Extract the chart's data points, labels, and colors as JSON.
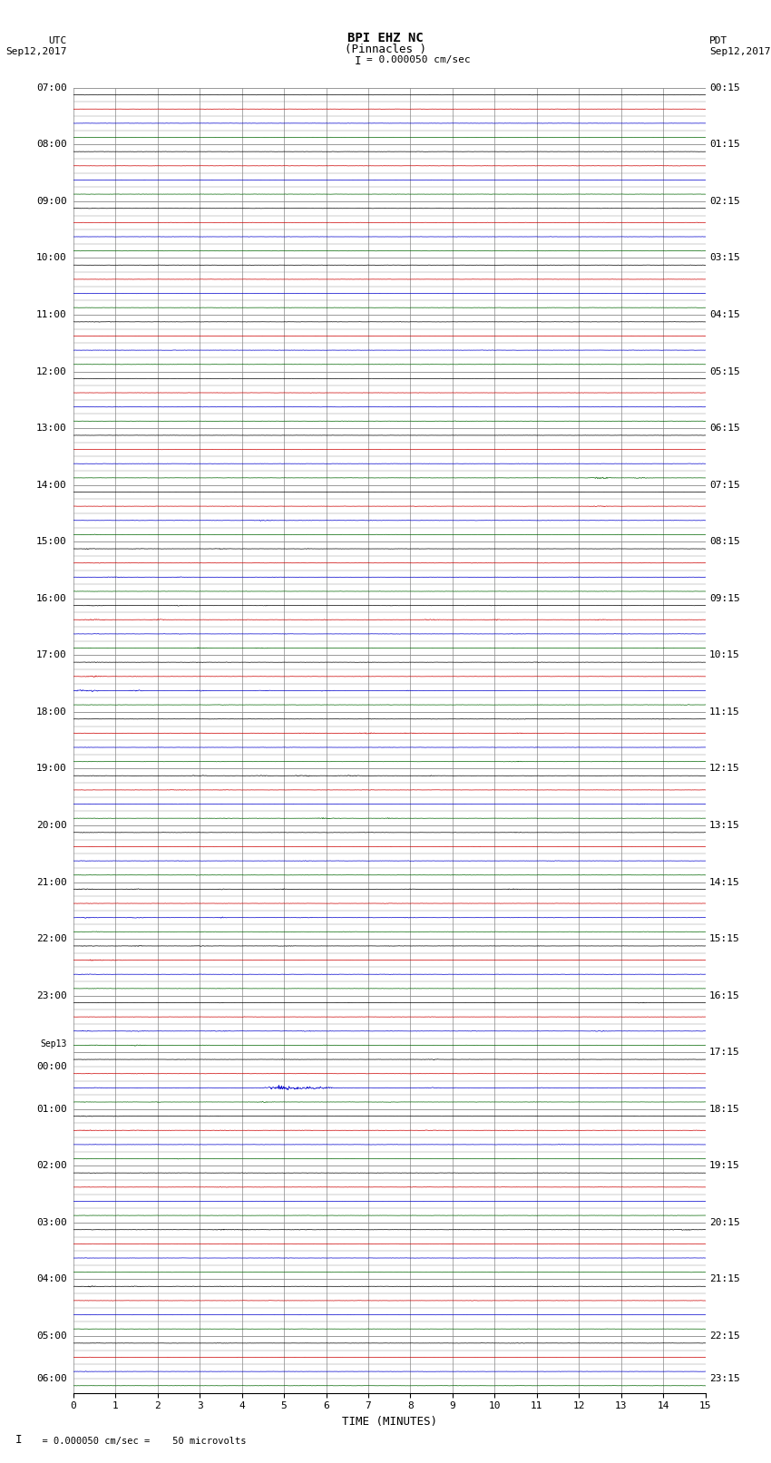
{
  "title_line1": "BPI EHZ NC",
  "title_line2": "(Pinnacles )",
  "scale_bar": "I = 0.000050 cm/sec",
  "left_label_top": "UTC",
  "left_label_date": "Sep12,2017",
  "right_label_top": "PDT",
  "right_label_date": "Sep12,2017",
  "xlabel": "TIME (MINUTES)",
  "footer": "= 0.000050 cm/sec =    50 microvolts",
  "xlim": [
    0,
    15
  ],
  "bg_color": "#ffffff",
  "grid_color": "#888888",
  "grid_minor_color": "#bbbbbb",
  "trace_colors": [
    "#000000",
    "#cc0000",
    "#0000cc",
    "#006600"
  ],
  "n_rows": 92,
  "noise_seed": 12345,
  "fig_width": 8.5,
  "fig_height": 16.13,
  "utc_labels": {
    "0": "07:00",
    "4": "08:00",
    "8": "09:00",
    "12": "10:00",
    "16": "11:00",
    "20": "12:00",
    "24": "13:00",
    "28": "14:00",
    "32": "15:00",
    "36": "16:00",
    "40": "17:00",
    "44": "18:00",
    "48": "19:00",
    "52": "20:00",
    "56": "21:00",
    "60": "22:00",
    "64": "23:00",
    "68": "Sep13",
    "69": "00:00",
    "72": "01:00",
    "76": "02:00",
    "80": "03:00",
    "84": "04:00",
    "88": "05:00",
    "91": "06:00"
  },
  "pdt_labels": {
    "0": "00:15",
    "4": "01:15",
    "8": "02:15",
    "12": "03:15",
    "16": "04:15",
    "20": "05:15",
    "24": "06:15",
    "28": "07:15",
    "32": "08:15",
    "36": "09:15",
    "40": "10:15",
    "44": "11:15",
    "48": "12:15",
    "52": "13:15",
    "56": "14:15",
    "60": "15:15",
    "64": "16:15",
    "68": "17:15",
    "72": "18:15",
    "76": "19:15",
    "80": "20:15",
    "84": "21:15",
    "88": "22:15",
    "91": "23:15"
  },
  "base_noise": 0.006,
  "event_noise": 0.003
}
